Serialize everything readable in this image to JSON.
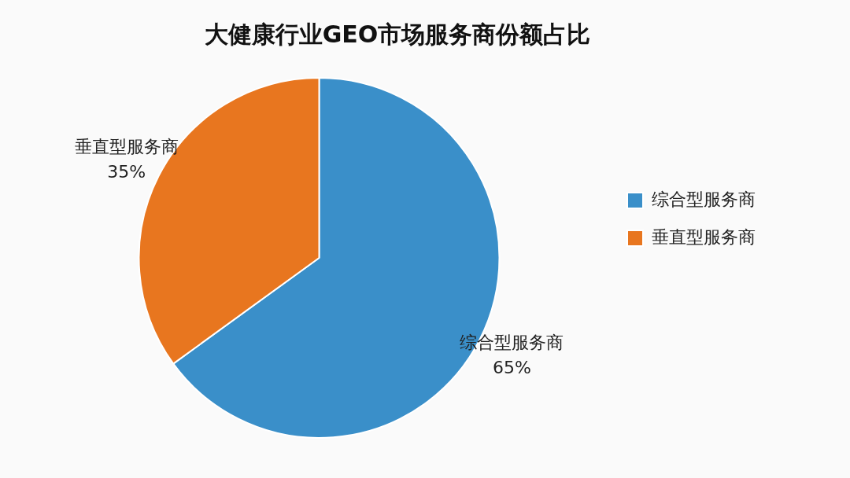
{
  "chart_data": {
    "type": "pie",
    "title": "大健康行业GEO市场服务商份额占比",
    "categories": [
      "综合型服务商",
      "垂直型服务商"
    ],
    "values": [
      65,
      35
    ],
    "value_labels": [
      "65%",
      "35%"
    ],
    "colors": [
      "#3a8fc9",
      "#e8761f"
    ],
    "legend": "right"
  }
}
